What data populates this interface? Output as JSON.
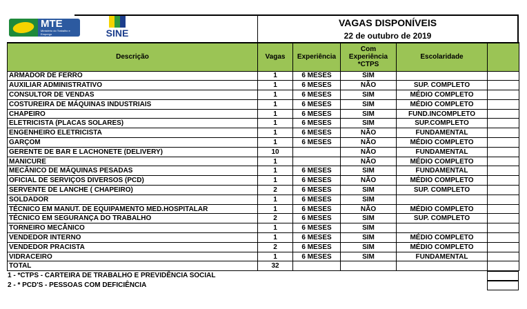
{
  "logos": {
    "mte": "MTE",
    "mte_sub": "Ministério do Trabalho e Emprego",
    "sine": "SINE"
  },
  "header": {
    "title": "VAGAS DISPONÍVEIS",
    "date": "22 de outubro de 2019"
  },
  "columns": [
    "Descrição",
    "Vagas",
    "Experiência",
    "Com Experiência *CTPS",
    "Escolaridade",
    ""
  ],
  "rows": [
    [
      "ARMADOR DE FERRO",
      "1",
      "6 MESES",
      "SIM",
      ""
    ],
    [
      "AUXILIAR ADMINISTRATIVO",
      "1",
      "6 MESES",
      "NÃO",
      "SUP. COMPLETO"
    ],
    [
      "CONSULTOR DE VENDAS",
      "1",
      "6 MESES",
      "SIM",
      "MÉDIO COMPLETO"
    ],
    [
      "COSTUREIRA DE MÁQUINAS INDUSTRIAIS",
      "1",
      "6 MESES",
      "SIM",
      "MÉDIO COMPLETO"
    ],
    [
      "CHAPEIRO",
      "1",
      "6 MESES",
      "SIM",
      "FUND.INCOMPLETO"
    ],
    [
      "ELETRICISTA (PLACAS SOLARES)",
      "1",
      "6 MESES",
      "SIM",
      "SUP.COMPLETO"
    ],
    [
      "ENGENHEIRO ELETRICISTA",
      "1",
      "6 MESES",
      "NÃO",
      "FUNDAMENTAL"
    ],
    [
      "GARÇOM",
      "1",
      "6 MESES",
      "NÃO",
      "MÉDIO COMPLETO"
    ],
    [
      "GERENTE DE BAR E LACHONETE (DELIVERY)",
      "10",
      "",
      "NÃO",
      "FUNDAMENTAL"
    ],
    [
      "MANICURE",
      "1",
      "",
      "NÃO",
      "MÉDIO COMPLETO"
    ],
    [
      "MECÂNICO DE MÁQUINAS PESADAS",
      "1",
      "6 MESES",
      "SIM",
      "FUNDAMENTAL"
    ],
    [
      "OFICIAL DE SERVIÇOS DIVERSOS (PCD)",
      "1",
      "6 MESES",
      "NÃO",
      "MÉDIO COMPLETO"
    ],
    [
      "SERVENTE DE LANCHE ( CHAPEIRO)",
      "2",
      "6 MESES",
      "SIM",
      "SUP. COMPLETO"
    ],
    [
      "SOLDADOR",
      "1",
      "6 MESES",
      "SIM",
      ""
    ],
    [
      "TÉCNICO EM MANUT. DE EQUIPAMENTO MED.HOSPITALAR",
      "1",
      "6 MESES",
      "NÃO",
      "MÉDIO COMPLETO"
    ],
    [
      "TÉCNICO EM SEGURANÇA DO TRABALHO",
      "2",
      "6 MESES",
      "SIM",
      "SUP. COMPLETO"
    ],
    [
      "TORNEIRO MECÂNICO",
      "1",
      "6 MESES",
      "SIM",
      ""
    ],
    [
      "VENDEDOR INTERNO",
      "1",
      "6 MESES",
      "SIM",
      "MÉDIO COMPLETO"
    ],
    [
      "VENDEDOR PRACISTA",
      "2",
      "6 MESES",
      "SIM",
      "MÉDIO COMPLETO"
    ],
    [
      "VIDRACEIRO",
      "1",
      "6 MESES",
      "SIM",
      "FUNDAMENTAL"
    ]
  ],
  "total": {
    "label": "TOTAL",
    "value": "32"
  },
  "notes": [
    "1 - *CTPS - CARTEIRA DE TRABALHO E PREVIDÊNCIA SOCIAL",
    "2 - * PCD'S - PESSOAS COM DEFICIÊNCIA"
  ],
  "colors": {
    "header_bg": "#9bc455"
  }
}
